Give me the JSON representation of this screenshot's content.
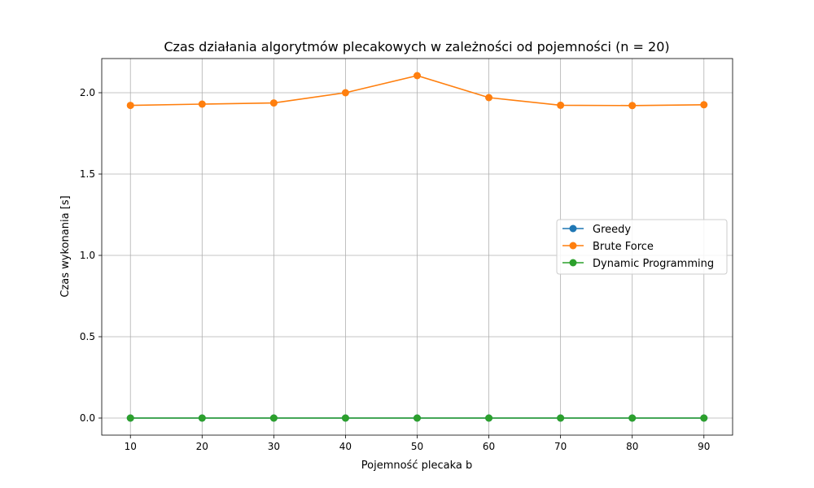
{
  "chart_data": {
    "type": "line",
    "title": "Czas działania algorytmów plecakowych w zależności od pojemności (n = 20)",
    "xlabel": "Pojemność plecaka b",
    "ylabel": "Czas wykonania [s]",
    "x": [
      10,
      20,
      30,
      40,
      50,
      60,
      70,
      80,
      90
    ],
    "xlim": [
      6,
      94
    ],
    "ylim": [
      -0.105,
      2.21
    ],
    "xticks": [
      10,
      20,
      30,
      40,
      50,
      60,
      70,
      80,
      90
    ],
    "yticks": [
      0.0,
      0.5,
      1.0,
      1.5,
      2.0
    ],
    "ytick_labels": [
      "0.0",
      "0.5",
      "1.0",
      "1.5",
      "2.0"
    ],
    "grid": true,
    "legend_position": "center-right",
    "series": [
      {
        "name": "Greedy",
        "color": "#1f77b4",
        "values": [
          0.0,
          0.0,
          0.0,
          0.0,
          0.0,
          0.0,
          0.0,
          0.0,
          0.0
        ]
      },
      {
        "name": "Brute Force",
        "color": "#ff7f0e",
        "values": [
          1.922,
          1.93,
          1.937,
          2.0,
          2.105,
          1.97,
          1.923,
          1.921,
          1.926
        ]
      },
      {
        "name": "Dynamic Programming",
        "color": "#2ca02c",
        "values": [
          0.0,
          0.0,
          0.0,
          0.0,
          0.0,
          0.0,
          0.0,
          0.0,
          0.0
        ]
      }
    ]
  }
}
